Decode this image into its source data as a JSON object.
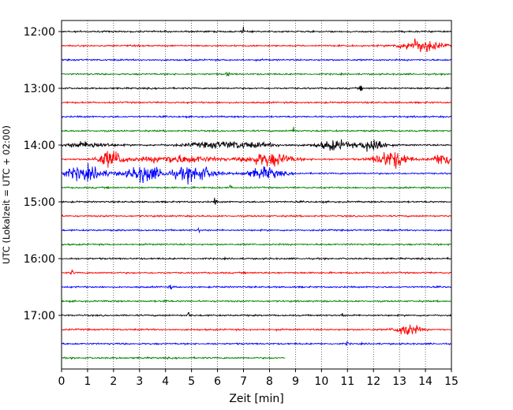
{
  "chart_data": {
    "type": "line",
    "subtype": "helicorder",
    "title": "",
    "xlabel": "Zeit  [min]",
    "ylabel": "UTC (Lokalzeit = UTC + 02:00)",
    "xlim": [
      0,
      15
    ],
    "xticks": [
      "0",
      "1",
      "2",
      "3",
      "4",
      "5",
      "6",
      "7",
      "8",
      "9",
      "10",
      "11",
      "12",
      "13",
      "14",
      "15"
    ],
    "yticks": [
      {
        "label": "12:00",
        "trace_index": 0
      },
      {
        "label": "13:00",
        "trace_index": 4
      },
      {
        "label": "14:00",
        "trace_index": 8
      },
      {
        "label": "15:00",
        "trace_index": 12
      },
      {
        "label": "16:00",
        "trace_index": 16
      },
      {
        "label": "17:00",
        "trace_index": 20
      }
    ],
    "grid": "vertical-dotted",
    "colors": [
      "#000000",
      "#ff0000",
      "#0000ff",
      "#008000"
    ],
    "series": [
      {
        "start": "12:00",
        "end_min": 15,
        "events": [
          {
            "t": 7.0,
            "amp": 7
          }
        ]
      },
      {
        "start": "12:15",
        "end_min": 15,
        "events": [
          {
            "t": 13.8,
            "amp": 14,
            "w": 1.0
          }
        ]
      },
      {
        "start": "12:30",
        "end_min": 15,
        "events": []
      },
      {
        "start": "12:45",
        "end_min": 15,
        "events": [
          {
            "t": 6.4,
            "amp": 6
          }
        ]
      },
      {
        "start": "13:00",
        "end_min": 15,
        "events": [
          {
            "t": 11.5,
            "amp": 6
          }
        ]
      },
      {
        "start": "13:15",
        "end_min": 15,
        "events": []
      },
      {
        "start": "13:30",
        "end_min": 15,
        "events": []
      },
      {
        "start": "13:45",
        "end_min": 15,
        "events": [
          {
            "t": 8.9,
            "amp": 12
          }
        ]
      },
      {
        "start": "14:00",
        "end_min": 15,
        "events": [
          {
            "t": 1.0,
            "amp": 6,
            "w": 1.2
          },
          {
            "t": 6.5,
            "amp": 7,
            "w": 2.2
          },
          {
            "t": 10.5,
            "amp": 10,
            "w": 0.9
          },
          {
            "t": 12.0,
            "amp": 16,
            "w": 0.6
          }
        ]
      },
      {
        "start": "14:15",
        "end_min": 15,
        "events": [
          {
            "t": 1.9,
            "amp": 18,
            "w": 0.7
          },
          {
            "t": 4.5,
            "amp": 8,
            "w": 2.0
          },
          {
            "t": 8.0,
            "amp": 14,
            "w": 1.2
          },
          {
            "t": 12.7,
            "amp": 18,
            "w": 0.9
          },
          {
            "t": 14.7,
            "amp": 16,
            "w": 0.5
          }
        ]
      },
      {
        "start": "14:30",
        "end_min": 15,
        "events": [
          {
            "t": 0.9,
            "amp": 14,
            "w": 1.2
          },
          {
            "t": 3.2,
            "amp": 18,
            "w": 0.9
          },
          {
            "t": 5.1,
            "amp": 16,
            "w": 1.1
          },
          {
            "t": 7.8,
            "amp": 12,
            "w": 0.9
          }
        ]
      },
      {
        "start": "14:45",
        "end_min": 15,
        "events": [
          {
            "t": 6.5,
            "amp": 4
          }
        ]
      },
      {
        "start": "15:00",
        "end_min": 15,
        "events": [
          {
            "t": 5.9,
            "amp": 7
          }
        ]
      },
      {
        "start": "15:15",
        "end_min": 15,
        "events": []
      },
      {
        "start": "15:30",
        "end_min": 15,
        "events": [
          {
            "t": 5.3,
            "amp": 5
          }
        ]
      },
      {
        "start": "15:45",
        "end_min": 15,
        "events": []
      },
      {
        "start": "16:00",
        "end_min": 15,
        "events": []
      },
      {
        "start": "16:15",
        "end_min": 15,
        "events": [
          {
            "t": 0.4,
            "amp": 5
          }
        ]
      },
      {
        "start": "16:30",
        "end_min": 15,
        "events": [
          {
            "t": 4.2,
            "amp": 5
          }
        ]
      },
      {
        "start": "16:45",
        "end_min": 15,
        "events": [
          {
            "t": 4.0,
            "amp": 4
          }
        ]
      },
      {
        "start": "17:00",
        "end_min": 15,
        "events": [
          {
            "t": 4.9,
            "amp": 7
          },
          {
            "t": 10.8,
            "amp": 4
          }
        ]
      },
      {
        "start": "17:15",
        "end_min": 15,
        "events": [
          {
            "t": 13.3,
            "amp": 13,
            "w": 0.6
          }
        ]
      },
      {
        "start": "17:30",
        "end_min": 15,
        "events": [
          {
            "t": 11.0,
            "amp": 4
          }
        ]
      },
      {
        "start": "17:45",
        "end_min": 8.6,
        "events": []
      }
    ]
  }
}
